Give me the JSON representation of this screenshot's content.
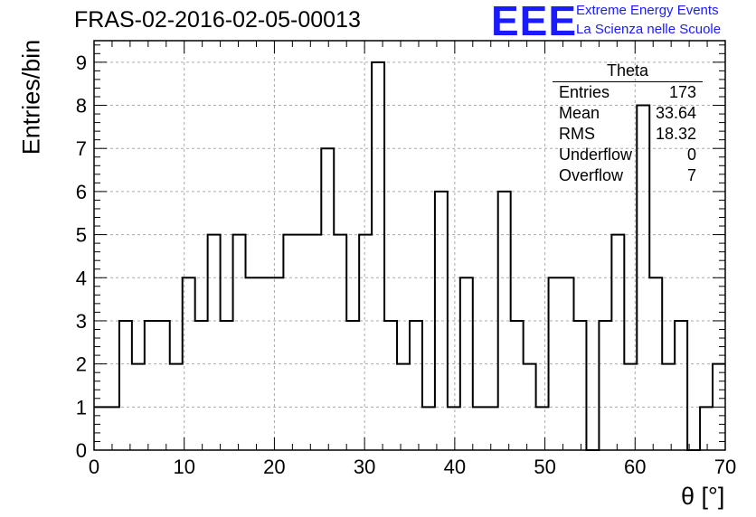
{
  "title": "FRAS-02-2016-02-05-00013",
  "logo": {
    "letters": "EEE",
    "line1": "Extreme Energy Events",
    "line2": "La Scienza nelle Scuole",
    "color": "#1a1aff"
  },
  "stats_box": {
    "name": "Theta",
    "rows": [
      {
        "label": "Entries",
        "value": "173"
      },
      {
        "label": "Mean",
        "value": "33.64"
      },
      {
        "label": "RMS",
        "value": "18.32"
      },
      {
        "label": "Underflow",
        "value": "0"
      },
      {
        "label": "Overflow",
        "value": "7"
      }
    ]
  },
  "chart_data": {
    "type": "bar",
    "style": "step histogram",
    "title": "FRAS-02-2016-02-05-00013",
    "xlabel": "θ [°]",
    "ylabel": "Entries/bin",
    "xlim": [
      0,
      70
    ],
    "ylim": [
      0,
      9.5
    ],
    "grid": true,
    "bin_width": 1.4,
    "bin_edges_start": 0,
    "values": [
      1,
      1,
      3,
      2,
      3,
      3,
      2,
      4,
      3,
      5,
      3,
      5,
      4,
      4,
      4,
      5,
      5,
      5,
      7,
      5,
      3,
      5,
      9,
      3,
      2,
      3,
      1,
      6,
      1,
      4,
      1,
      1,
      6,
      3,
      2,
      1,
      4,
      4,
      3,
      0,
      3,
      5,
      2,
      8,
      4,
      2,
      3,
      0,
      1,
      2
    ],
    "x_ticks": [
      "0",
      "10",
      "20",
      "30",
      "40",
      "50",
      "60",
      "70"
    ],
    "y_ticks": [
      "0",
      "1",
      "2",
      "3",
      "4",
      "5",
      "6",
      "7",
      "8",
      "9"
    ]
  }
}
